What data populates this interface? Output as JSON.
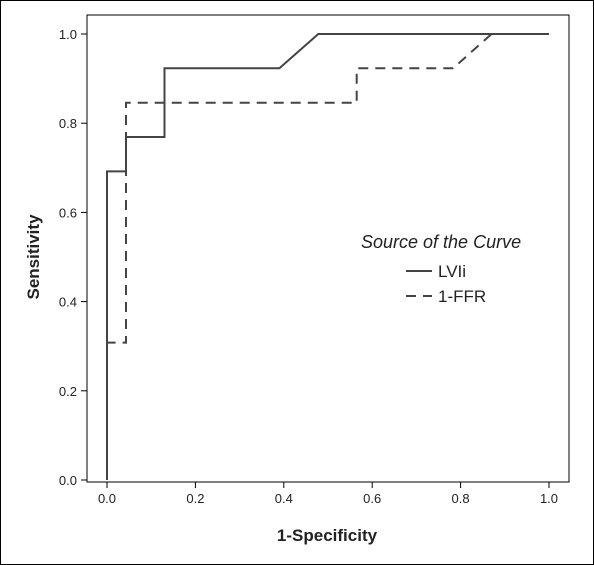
{
  "chart_data": {
    "type": "line",
    "title": "",
    "xlabel": "1-Specificity",
    "ylabel": "Sensitivity",
    "xlim": [
      0,
      1
    ],
    "ylim": [
      0,
      1
    ],
    "x_ticks": [
      "0.0",
      "0.2",
      "0.4",
      "0.6",
      "0.8",
      "1.0"
    ],
    "y_ticks": [
      "0.0",
      "0.2",
      "0.4",
      "0.6",
      "0.8",
      "1.0"
    ],
    "grid": false,
    "legend_title": "Source of the Curve",
    "legend_placement": "right",
    "series": [
      {
        "name": "LVIi",
        "style": "solid",
        "color": "#444444",
        "x": [
          0,
          0,
          0.043,
          0.043,
          0.13,
          0.13,
          0.39,
          0.478,
          1.0
        ],
        "y": [
          0,
          0.692,
          0.692,
          0.769,
          0.769,
          0.923,
          0.923,
          1.0,
          1.0
        ]
      },
      {
        "name": "1-FFR",
        "style": "dashed",
        "color": "#444444",
        "x": [
          0,
          0,
          0.043,
          0.043,
          0.565,
          0.565,
          0.783,
          0.87,
          1.0
        ],
        "y": [
          0,
          0.308,
          0.308,
          0.846,
          0.846,
          0.923,
          0.923,
          1.0,
          1.0
        ]
      }
    ]
  }
}
